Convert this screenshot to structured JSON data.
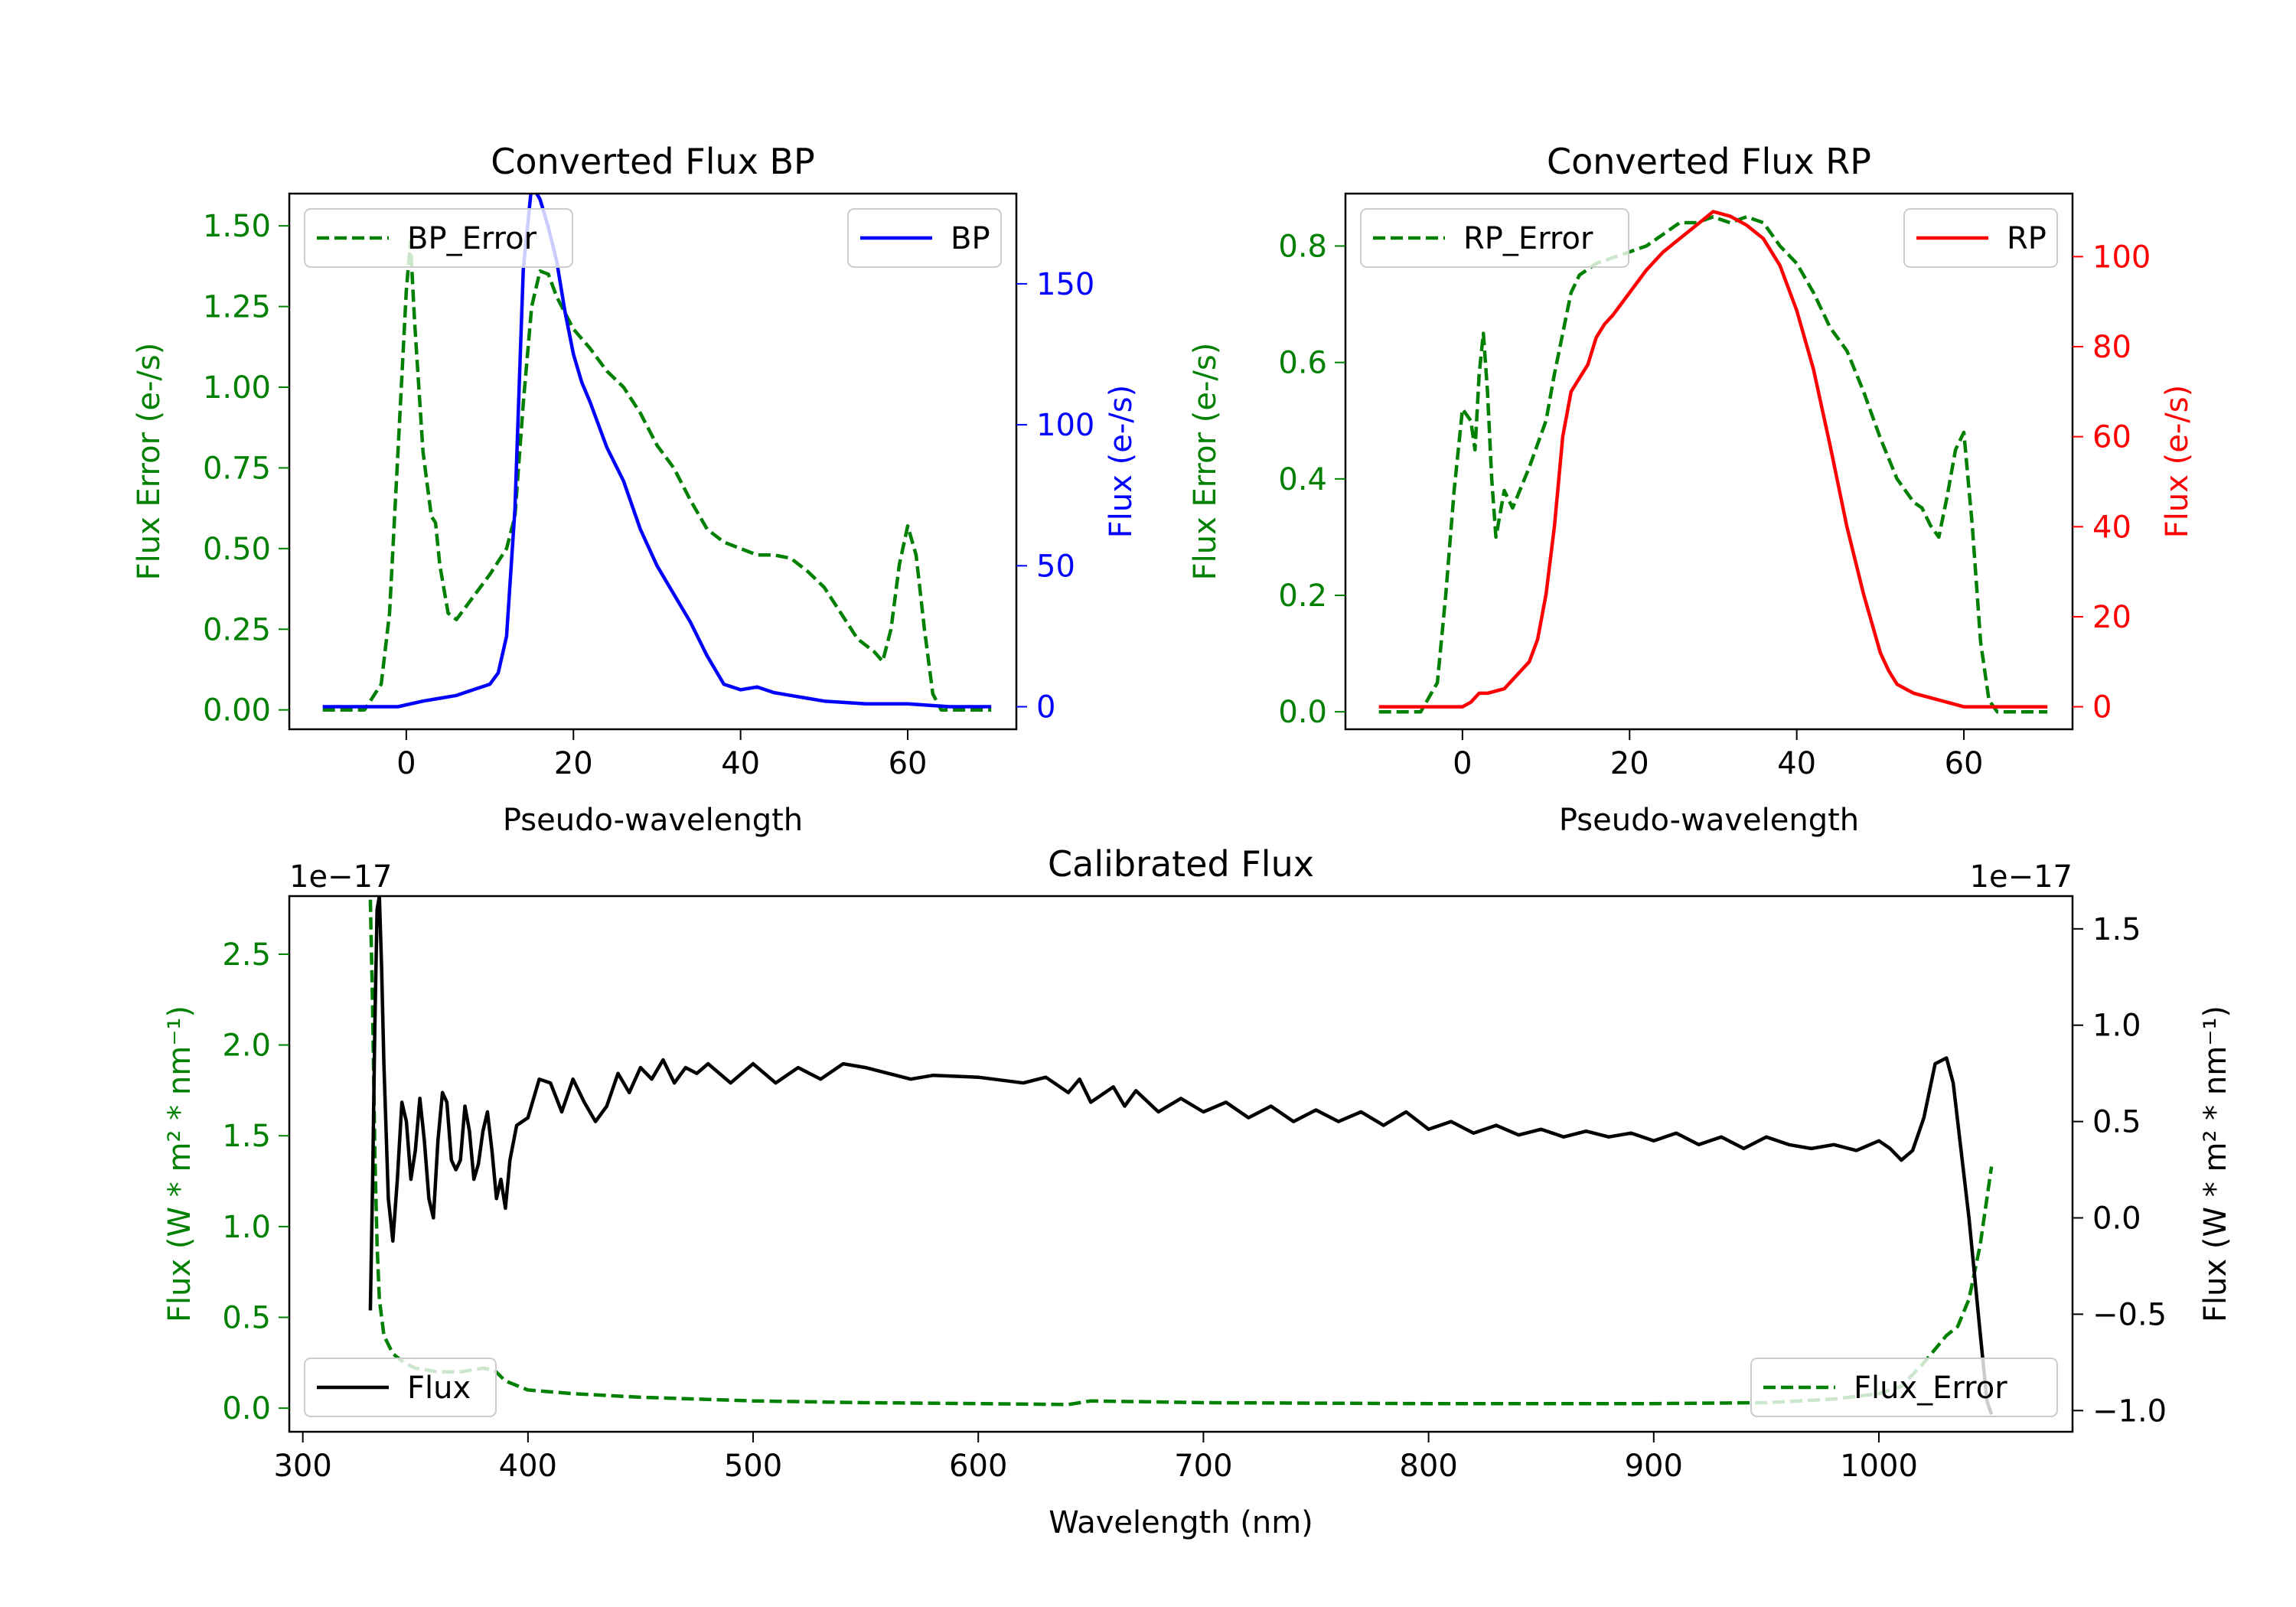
{
  "chart_data": [
    {
      "type": "line",
      "title": "Converted Flux BP",
      "xlabel": "Pseudo-wavelength",
      "ylabel_left": "Flux Error (e-/s)",
      "ylabel_right": "Flux (e-/s)",
      "xlim": [
        -14,
        73
      ],
      "ylim_left": [
        -0.06,
        1.6
      ],
      "ylim_right": [
        -8,
        182
      ],
      "xticks": [
        0,
        20,
        40,
        60
      ],
      "xtick_labels": [
        "0",
        "20",
        "40",
        "60"
      ],
      "yticks_left": [
        0,
        0.25,
        0.5,
        0.75,
        1.0,
        1.25,
        1.5
      ],
      "yticks_left_labels": [
        "0.00",
        "0.25",
        "0.50",
        "0.75",
        "1.00",
        "1.25",
        "1.50"
      ],
      "yticks_right": [
        0,
        50,
        100,
        150
      ],
      "yticks_right_labels": [
        "0",
        "50",
        "100",
        "150"
      ],
      "legend_left": {
        "position": "top-left",
        "label": "BP_Error"
      },
      "legend_right": {
        "position": "top-right",
        "label": "BP"
      },
      "colors": {
        "error": "#008000",
        "flux": "#0000ff",
        "left_axis": "#008000",
        "right_axis": "#0000ff"
      },
      "series": [
        {
          "name": "BP_Error",
          "axis": "left",
          "style": "dashed",
          "color": "#008000",
          "x": [
            -10,
            -5,
            -3,
            -2,
            -1,
            0,
            0.5,
            1,
            2,
            3,
            3.5,
            4,
            5,
            6,
            8,
            10,
            12,
            13,
            14,
            15,
            16,
            17,
            18,
            20,
            22,
            24,
            26,
            28,
            30,
            32,
            34,
            36,
            38,
            40,
            42,
            44,
            46,
            48,
            50,
            52,
            54,
            56,
            57,
            58,
            59,
            60,
            61,
            62,
            63,
            64,
            66,
            70
          ],
          "y": [
            0.0,
            0.0,
            0.08,
            0.3,
            0.8,
            1.3,
            1.45,
            1.2,
            0.8,
            0.6,
            0.58,
            0.45,
            0.3,
            0.28,
            0.35,
            0.42,
            0.5,
            0.6,
            0.95,
            1.25,
            1.36,
            1.35,
            1.28,
            1.18,
            1.12,
            1.05,
            1.0,
            0.92,
            0.82,
            0.75,
            0.65,
            0.56,
            0.52,
            0.5,
            0.48,
            0.48,
            0.47,
            0.43,
            0.38,
            0.3,
            0.22,
            0.18,
            0.15,
            0.25,
            0.45,
            0.57,
            0.48,
            0.25,
            0.05,
            0.0,
            0.0,
            0.0
          ]
        },
        {
          "name": "BP",
          "axis": "right",
          "style": "solid",
          "color": "#0000ff",
          "x": [
            -10,
            -4,
            -1,
            2,
            4,
            6,
            8,
            10,
            11,
            12,
            13,
            14,
            15,
            16,
            17,
            18,
            19,
            20,
            21,
            22,
            24,
            26,
            28,
            30,
            32,
            34,
            36,
            38,
            40,
            42,
            44,
            46,
            48,
            50,
            55,
            60,
            65,
            70
          ],
          "y": [
            0,
            0,
            0,
            2,
            3,
            4,
            6,
            8,
            12,
            25,
            70,
            155,
            185,
            180,
            170,
            158,
            140,
            125,
            115,
            108,
            92,
            80,
            63,
            50,
            40,
            30,
            18,
            8,
            6,
            7,
            5,
            4,
            3,
            2,
            1,
            1,
            0,
            0
          ]
        }
      ]
    },
    {
      "type": "line",
      "title": "Converted Flux RP",
      "xlabel": "Pseudo-wavelength",
      "ylabel_left": "Flux Error (e-/s)",
      "ylabel_right": "Flux (e-/s)",
      "xlim": [
        -14,
        73
      ],
      "ylim_left": [
        -0.03,
        0.89
      ],
      "ylim_right": [
        -5,
        114
      ],
      "xticks": [
        0,
        20,
        40,
        60
      ],
      "xtick_labels": [
        "0",
        "20",
        "40",
        "60"
      ],
      "yticks_left": [
        0.0,
        0.2,
        0.4,
        0.6,
        0.8
      ],
      "yticks_left_labels": [
        "0.0",
        "0.2",
        "0.4",
        "0.6",
        "0.8"
      ],
      "yticks_right": [
        0,
        20,
        40,
        60,
        80,
        100
      ],
      "yticks_right_labels": [
        "0",
        "20",
        "40",
        "60",
        "80",
        "100"
      ],
      "legend_left": {
        "position": "top-left",
        "label": "RP_Error"
      },
      "legend_right": {
        "position": "top-right",
        "label": "RP"
      },
      "colors": {
        "error": "#008000",
        "flux": "#ff0000",
        "left_axis": "#008000",
        "right_axis": "#ff0000"
      },
      "series": [
        {
          "name": "RP_Error",
          "axis": "left",
          "style": "dashed",
          "color": "#008000",
          "x": [
            -10,
            -5,
            -3,
            -2,
            -1,
            0,
            1,
            1.5,
            2,
            2.5,
            3,
            3.5,
            4,
            5,
            6,
            8,
            10,
            11,
            12,
            13,
            14,
            16,
            18,
            20,
            22,
            24,
            26,
            28,
            30,
            32,
            34,
            36,
            38,
            40,
            42,
            44,
            46,
            48,
            50,
            52,
            54,
            55,
            56,
            57,
            58,
            59,
            60,
            61,
            62,
            63,
            64,
            66,
            70
          ],
          "y": [
            0.0,
            0.0,
            0.05,
            0.2,
            0.38,
            0.52,
            0.5,
            0.45,
            0.58,
            0.65,
            0.55,
            0.4,
            0.3,
            0.38,
            0.35,
            0.42,
            0.5,
            0.58,
            0.65,
            0.72,
            0.75,
            0.77,
            0.78,
            0.79,
            0.8,
            0.82,
            0.84,
            0.84,
            0.85,
            0.84,
            0.85,
            0.84,
            0.8,
            0.77,
            0.72,
            0.66,
            0.62,
            0.55,
            0.47,
            0.4,
            0.36,
            0.35,
            0.32,
            0.3,
            0.37,
            0.45,
            0.48,
            0.32,
            0.12,
            0.02,
            0.0,
            0.0,
            0.0
          ]
        },
        {
          "name": "RP",
          "axis": "right",
          "style": "solid",
          "color": "#ff0000",
          "x": [
            -10,
            -4,
            -1,
            0,
            1,
            2,
            3,
            5,
            6,
            7,
            8,
            9,
            10,
            11,
            12,
            13,
            14,
            15,
            16,
            17,
            18,
            20,
            22,
            24,
            26,
            28,
            30,
            32,
            34,
            36,
            38,
            40,
            42,
            44,
            46,
            48,
            50,
            51,
            52,
            53,
            54,
            56,
            58,
            60,
            65,
            70
          ],
          "y": [
            0,
            0,
            0,
            0,
            1,
            3,
            3,
            4,
            6,
            8,
            10,
            15,
            25,
            40,
            60,
            70,
            73,
            76,
            82,
            85,
            87,
            92,
            97,
            101,
            104,
            107,
            110,
            109,
            107,
            104,
            98,
            88,
            75,
            58,
            40,
            25,
            12,
            8,
            5,
            4,
            3,
            2,
            1,
            0,
            0,
            0
          ]
        }
      ]
    },
    {
      "type": "line",
      "title": "Calibrated Flux",
      "xlabel": "Wavelength (nm)",
      "ylabel_left": "Flux (W * m² * nm⁻¹)",
      "ylabel_right": "Flux (W * m² * nm⁻¹)",
      "xlim": [
        294,
        1086
      ],
      "ylim_left": [
        -0.13,
        2.82
      ],
      "ylim_right": [
        -1.11,
        1.67
      ],
      "multiplier_left": "1e−17",
      "multiplier_right": "1e−17",
      "xticks": [
        300,
        400,
        500,
        600,
        700,
        800,
        900,
        1000
      ],
      "xtick_labels": [
        "300",
        "400",
        "500",
        "600",
        "700",
        "800",
        "900",
        "1000"
      ],
      "yticks_left": [
        0.0,
        0.5,
        1.0,
        1.5,
        2.0,
        2.5
      ],
      "yticks_left_labels": [
        "0.0",
        "0.5",
        "1.0",
        "1.5",
        "2.0",
        "2.5"
      ],
      "yticks_right": [
        -1.0,
        -0.5,
        0.0,
        0.5,
        1.0,
        1.5
      ],
      "yticks_right_labels": [
        "−1.0",
        "−0.5",
        "0.0",
        "0.5",
        "1.0",
        "1.5"
      ],
      "legend_left": {
        "position": "bottom-left",
        "label": "Flux"
      },
      "legend_right": {
        "position": "bottom-right",
        "label": "Flux_Error"
      },
      "colors": {
        "error": "#008000",
        "flux": "#000000",
        "left_axis": "#008000",
        "right_axis": "#000000"
      },
      "series": [
        {
          "name": "Flux_Error",
          "axis": "left",
          "style": "dashed",
          "color": "#008000",
          "x": [
            330,
            331,
            332,
            333,
            334,
            336,
            340,
            345,
            350,
            360,
            370,
            380,
            385,
            390,
            400,
            420,
            450,
            500,
            550,
            600,
            640,
            650,
            700,
            800,
            900,
            950,
            980,
            1000,
            1010,
            1020,
            1030,
            1035,
            1040,
            1045,
            1050
          ],
          "y": [
            2.8,
            2.2,
            1.4,
            0.9,
            0.6,
            0.4,
            0.3,
            0.25,
            0.22,
            0.2,
            0.2,
            0.22,
            0.21,
            0.15,
            0.1,
            0.08,
            0.06,
            0.04,
            0.03,
            0.025,
            0.02,
            0.04,
            0.03,
            0.025,
            0.025,
            0.03,
            0.05,
            0.08,
            0.12,
            0.25,
            0.4,
            0.45,
            0.6,
            0.9,
            1.33
          ]
        },
        {
          "name": "Flux",
          "axis": "right",
          "style": "solid",
          "color": "#000000",
          "x": [
            330,
            331,
            332,
            333,
            334,
            335,
            336,
            338,
            340,
            342,
            344,
            346,
            348,
            350,
            352,
            354,
            356,
            358,
            360,
            362,
            364,
            366,
            368,
            370,
            372,
            374,
            376,
            378,
            380,
            382,
            384,
            386,
            388,
            390,
            392,
            395,
            400,
            405,
            410,
            415,
            420,
            425,
            430,
            435,
            440,
            445,
            450,
            455,
            460,
            465,
            470,
            475,
            480,
            490,
            500,
            510,
            520,
            530,
            540,
            550,
            560,
            570,
            580,
            600,
            620,
            630,
            640,
            645,
            650,
            660,
            665,
            670,
            680,
            690,
            700,
            710,
            720,
            730,
            740,
            750,
            760,
            770,
            780,
            790,
            800,
            810,
            820,
            830,
            840,
            850,
            860,
            870,
            880,
            890,
            900,
            910,
            920,
            930,
            940,
            950,
            960,
            970,
            980,
            990,
            1000,
            1005,
            1010,
            1015,
            1020,
            1025,
            1030,
            1033,
            1036,
            1040,
            1045,
            1048,
            1050
          ],
          "y": [
            -0.48,
            0.2,
            1.0,
            1.6,
            1.67,
            1.3,
            0.8,
            0.1,
            -0.12,
            0.2,
            0.6,
            0.5,
            0.2,
            0.35,
            0.62,
            0.4,
            0.1,
            0.0,
            0.4,
            0.65,
            0.6,
            0.3,
            0.25,
            0.3,
            0.58,
            0.45,
            0.2,
            0.28,
            0.45,
            0.55,
            0.35,
            0.1,
            0.2,
            0.05,
            0.3,
            0.48,
            0.52,
            0.72,
            0.7,
            0.55,
            0.72,
            0.6,
            0.5,
            0.58,
            0.75,
            0.65,
            0.78,
            0.72,
            0.82,
            0.7,
            0.78,
            0.75,
            0.8,
            0.7,
            0.8,
            0.7,
            0.78,
            0.72,
            0.8,
            0.78,
            0.75,
            0.72,
            0.74,
            0.73,
            0.7,
            0.73,
            0.65,
            0.72,
            0.6,
            0.68,
            0.58,
            0.66,
            0.55,
            0.62,
            0.55,
            0.6,
            0.52,
            0.58,
            0.5,
            0.56,
            0.5,
            0.55,
            0.48,
            0.55,
            0.46,
            0.5,
            0.44,
            0.48,
            0.43,
            0.46,
            0.42,
            0.45,
            0.42,
            0.44,
            0.4,
            0.44,
            0.38,
            0.42,
            0.36,
            0.42,
            0.38,
            0.36,
            0.38,
            0.35,
            0.4,
            0.36,
            0.3,
            0.35,
            0.52,
            0.8,
            0.83,
            0.7,
            0.4,
            0.0,
            -0.6,
            -0.95,
            -1.02
          ]
        }
      ]
    }
  ]
}
